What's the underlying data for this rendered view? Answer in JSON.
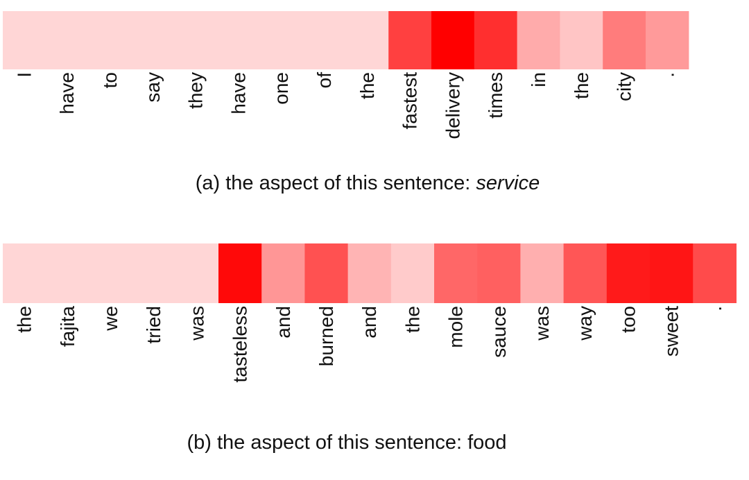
{
  "chart_data": [
    {
      "type": "heatmap",
      "caption_prefix": "(a) the aspect of this sentence: ",
      "caption_aspect": "service",
      "aspect_italic": true,
      "colormap": {
        "low": "#ffd6d6",
        "high": "#ff0000"
      },
      "tokens": [
        "I",
        "have",
        "to",
        "say",
        "they",
        "have",
        "one",
        "of",
        "the",
        "fastest",
        "delivery",
        "times",
        "in",
        "the",
        "city",
        "."
      ],
      "weights": [
        0.0,
        0.0,
        0.0,
        0.0,
        0.0,
        0.0,
        0.0,
        0.0,
        0.0,
        0.7,
        1.0,
        0.78,
        0.2,
        0.08,
        0.42,
        0.28
      ]
    },
    {
      "type": "heatmap",
      "caption_prefix": "(b) the aspect of this sentence: ",
      "caption_aspect": "food",
      "aspect_italic": false,
      "colormap": {
        "low": "#ffd6d6",
        "high": "#ff0000"
      },
      "tokens": [
        "the",
        "fajita",
        "we",
        "tried",
        "was",
        "tasteless",
        "and",
        "burned",
        "and",
        "the",
        "mole",
        "sauce",
        "was",
        "way",
        "too",
        "sweet",
        "."
      ],
      "weights": [
        0.0,
        0.0,
        0.0,
        0.0,
        0.0,
        0.96,
        0.3,
        0.62,
        0.16,
        0.05,
        0.52,
        0.55,
        0.18,
        0.6,
        0.88,
        0.9,
        0.65
      ]
    }
  ]
}
